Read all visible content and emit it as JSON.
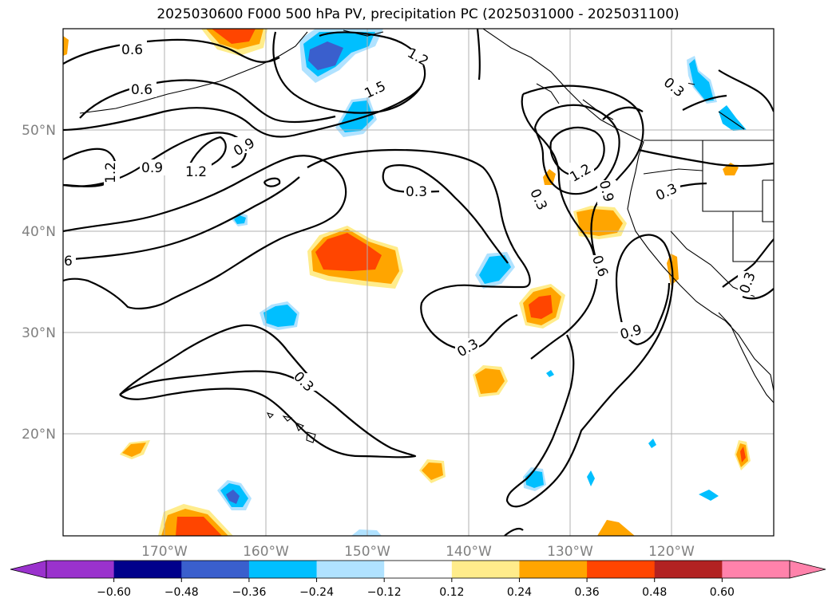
{
  "title": "2025030600 F000 500 hPa PV, precipitation PC (2025031000 - 2025031100)",
  "map": {
    "lon_labels": [
      "170°W",
      "160°W",
      "150°W",
      "140°W",
      "130°W",
      "120°W"
    ],
    "lat_labels": [
      "50°N",
      "40°N",
      "30°N",
      "20°N"
    ],
    "grid": true,
    "contour_labels": [
      "0.6",
      "0.6",
      "1.2",
      "1.5",
      "0.9",
      "1.2",
      "0.9",
      "1.2",
      "6",
      "0.3",
      "0.3",
      "0.3",
      "0.3",
      "1.2",
      "0.9",
      "0.3",
      "0.6",
      "0.9",
      "0.3",
      "0.3"
    ]
  },
  "colorbar": {
    "ticks": [
      "−0.60",
      "−0.48",
      "−0.36",
      "−0.24",
      "−0.12",
      "0.12",
      "0.24",
      "0.36",
      "0.48",
      "0.60"
    ],
    "colors": [
      "#9a32cd",
      "#00008b",
      "#3a5fcd",
      "#00bfff",
      "#b0e2ff",
      "#ffffff",
      "#ffec8b",
      "#ffa500",
      "#ff4500",
      "#b22222",
      "#ff82ab"
    ]
  }
}
